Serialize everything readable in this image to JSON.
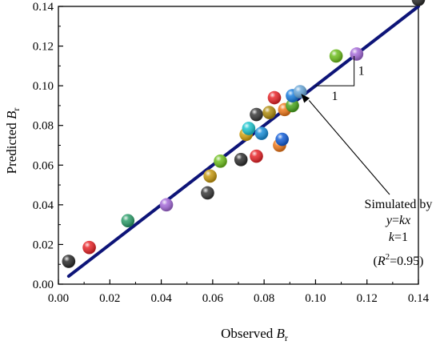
{
  "chart_data": {
    "type": "scatter",
    "xlabel": {
      "text": "Observed ",
      "var": "B",
      "sub": "r"
    },
    "ylabel": {
      "text": "Predicted ",
      "var": "B",
      "sub": "r"
    },
    "xlim": [
      0.0,
      0.14
    ],
    "ylim": [
      0.0,
      0.14
    ],
    "x_ticks": [
      "0.00",
      "0.02",
      "0.04",
      "0.06",
      "0.08",
      "0.10",
      "0.12",
      "0.14"
    ],
    "y_ticks": [
      "0.00",
      "0.02",
      "0.04",
      "0.06",
      "0.08",
      "0.10",
      "0.12",
      "0.14"
    ],
    "grid": false,
    "fit_line": {
      "from": [
        0.004,
        0.004
      ],
      "to": [
        0.14,
        0.14
      ],
      "color": "#0d1478"
    },
    "slope_triangle": {
      "run_label": "1",
      "rise_label": "1"
    },
    "annotation": {
      "line1": "Simulated by",
      "line2_a": "y",
      "line2_b": "=",
      "line2_c": "kx",
      "line3_a": "k",
      "line3_b": "=1",
      "line4_a": "(",
      "line4_b": "R",
      "line4_sup": "2",
      "line4_c": "=0.95)"
    },
    "points": [
      {
        "x": 0.004,
        "y": 0.0115,
        "color": "#2b2b2b"
      },
      {
        "x": 0.012,
        "y": 0.0185,
        "color": "#e8262a"
      },
      {
        "x": 0.027,
        "y": 0.032,
        "color": "#2e9e6b"
      },
      {
        "x": 0.042,
        "y": 0.04,
        "color": "#a66cd9"
      },
      {
        "x": 0.058,
        "y": 0.046,
        "color": "#3a3a3a"
      },
      {
        "x": 0.059,
        "y": 0.0545,
        "color": "#c89b12"
      },
      {
        "x": 0.063,
        "y": 0.062,
        "color": "#6fbf1f"
      },
      {
        "x": 0.071,
        "y": 0.0628,
        "color": "#303030"
      },
      {
        "x": 0.077,
        "y": 0.0645,
        "color": "#e8262a"
      },
      {
        "x": 0.073,
        "y": 0.0755,
        "color": "#d4a20e"
      },
      {
        "x": 0.074,
        "y": 0.0785,
        "color": "#1fc6cf"
      },
      {
        "x": 0.079,
        "y": 0.076,
        "color": "#1a8fd9"
      },
      {
        "x": 0.077,
        "y": 0.0855,
        "color": "#3a3a3a"
      },
      {
        "x": 0.082,
        "y": 0.0865,
        "color": "#b08d0f"
      },
      {
        "x": 0.084,
        "y": 0.094,
        "color": "#e8262a"
      },
      {
        "x": 0.086,
        "y": 0.07,
        "color": "#f07a1c"
      },
      {
        "x": 0.087,
        "y": 0.073,
        "color": "#1560d9"
      },
      {
        "x": 0.088,
        "y": 0.088,
        "color": "#f07a1c"
      },
      {
        "x": 0.091,
        "y": 0.09,
        "color": "#4aa61e"
      },
      {
        "x": 0.091,
        "y": 0.095,
        "color": "#1a7fe0"
      },
      {
        "x": 0.094,
        "y": 0.097,
        "color": "#6aa7d8"
      },
      {
        "x": 0.108,
        "y": 0.115,
        "color": "#6fbf1f"
      },
      {
        "x": 0.116,
        "y": 0.116,
        "color": "#a66cd9"
      },
      {
        "x": 0.14,
        "y": 0.1435,
        "color": "#2b2b2b"
      }
    ]
  }
}
